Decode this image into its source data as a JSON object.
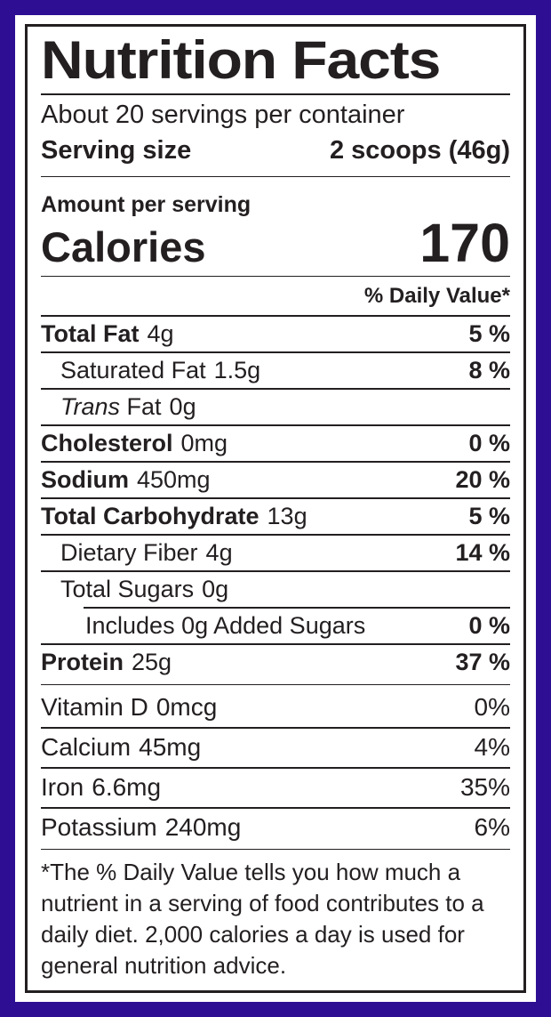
{
  "colors": {
    "border": "#2e0f94",
    "ink": "#231f20"
  },
  "label": {
    "title": "Nutrition Facts",
    "servings_per_container": "About 20 servings per container",
    "serving_size_label": "Serving size",
    "serving_size_value": "2 scoops (46g)",
    "amount_per_serving": "Amount per serving",
    "calories_label": "Calories",
    "calories_value": "170",
    "daily_value_header": "% Daily Value*",
    "footnote": "*The % Daily Value tells you how much a nutrient in a serving of food contributes to a daily diet. 2,000 calories a day is used for general nutrition advice."
  },
  "nutrients": [
    {
      "name": "Total Fat",
      "amount": "4g",
      "dv": "5 %"
    },
    {
      "name": "Saturated Fat",
      "amount": "1.5g",
      "dv": "8 %"
    },
    {
      "name_italic": "Trans",
      "name": "Fat",
      "amount": "0g",
      "dv": ""
    },
    {
      "name": "Cholesterol",
      "amount": "0mg",
      "dv": "0 %"
    },
    {
      "name": "Sodium",
      "amount": "450mg",
      "dv": "20 %"
    },
    {
      "name": "Total Carbohydrate",
      "amount": "13g",
      "dv": "5 %"
    },
    {
      "name": "Dietary Fiber",
      "amount": "4g",
      "dv": "14 %"
    },
    {
      "name": "Total Sugars",
      "amount": "0g",
      "dv": ""
    },
    {
      "name": "Includes 0g Added Sugars",
      "amount": "",
      "dv": "0 %"
    },
    {
      "name": "Protein",
      "amount": "25g",
      "dv": "37 %"
    }
  ],
  "micronutrients": [
    {
      "name": "Vitamin D",
      "amount": "0mcg",
      "dv": "0%"
    },
    {
      "name": "Calcium",
      "amount": "45mg",
      "dv": "4%"
    },
    {
      "name": "Iron",
      "amount": "6.6mg",
      "dv": "35%"
    },
    {
      "name": "Potassium",
      "amount": "240mg",
      "dv": "6%"
    }
  ]
}
